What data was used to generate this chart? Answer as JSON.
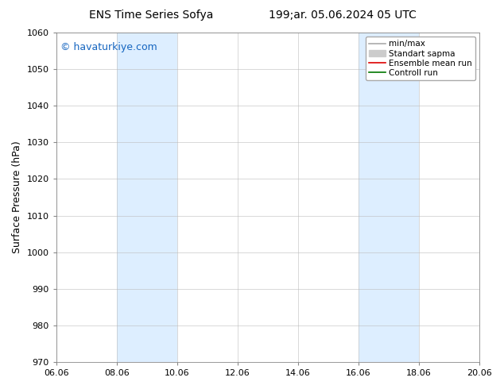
{
  "title_left": "ENS Time Series Sofya",
  "title_right": "199;ar. 05.06.2024 05 UTC",
  "ylabel": "Surface Pressure (hPa)",
  "ylim": [
    970,
    1060
  ],
  "yticks": [
    970,
    980,
    990,
    1000,
    1010,
    1020,
    1030,
    1040,
    1050,
    1060
  ],
  "xtick_labels": [
    "06.06",
    "08.06",
    "10.06",
    "12.06",
    "14.06",
    "16.06",
    "18.06",
    "20.06"
  ],
  "xtick_positions": [
    0,
    2,
    4,
    6,
    8,
    10,
    12,
    14
  ],
  "xlim": [
    0,
    14
  ],
  "shaded_bands": [
    {
      "x_start": 2,
      "x_end": 4,
      "color": "#ddeeff"
    },
    {
      "x_start": 10,
      "x_end": 12,
      "color": "#ddeeff"
    }
  ],
  "watermark": "© havaturkiye.com",
  "watermark_color": "#1565c0",
  "watermark_fontsize": 9,
  "legend_items": [
    {
      "label": "min/max",
      "color": "#aaaaaa",
      "lw": 1.2,
      "ls": "-",
      "type": "line"
    },
    {
      "label": "Standart sapma",
      "color": "#cccccc",
      "lw": 8,
      "ls": "-",
      "type": "patch"
    },
    {
      "label": "Ensemble mean run",
      "color": "#dd0000",
      "lw": 1.2,
      "ls": "-",
      "type": "line"
    },
    {
      "label": "Controll run",
      "color": "#007700",
      "lw": 1.2,
      "ls": "-",
      "type": "line"
    }
  ],
  "bg_color": "#ffffff",
  "plot_bg_color": "#ffffff",
  "grid_color": "#bbbbbb",
  "title_fontsize": 10,
  "tick_fontsize": 8,
  "ylabel_fontsize": 9,
  "legend_fontsize": 7.5
}
